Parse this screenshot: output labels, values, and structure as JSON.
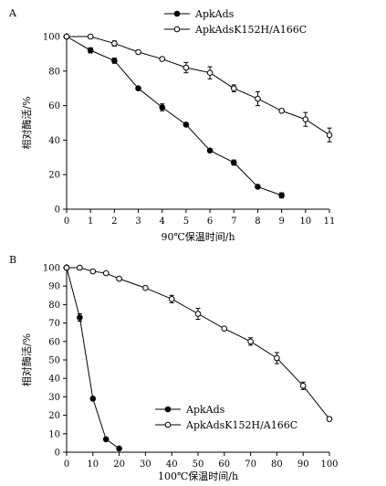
{
  "chart_data": [
    {
      "type": "line",
      "panel_label": "A",
      "xlabel": "90℃保温时间/h",
      "ylabel": "相对酶活/%",
      "xlim": [
        0,
        11
      ],
      "ylim": [
        0,
        100
      ],
      "xticks": [
        0,
        1,
        2,
        3,
        4,
        5,
        6,
        7,
        8,
        9,
        10,
        11
      ],
      "yticks": [
        0,
        20,
        40,
        60,
        80,
        100
      ],
      "grid": false,
      "legend_position": "top-right",
      "series": [
        {
          "name": "ApkAds",
          "marker": "filled-circle",
          "x": [
            0,
            1,
            2,
            3,
            4,
            5,
            6,
            7,
            8,
            9
          ],
          "y": [
            100,
            92,
            86,
            70,
            59,
            49,
            34,
            27,
            13,
            8
          ],
          "err": [
            1,
            1.5,
            1.5,
            0.8,
            2,
            0.8,
            0.8,
            1.5,
            0.5,
            1.5
          ]
        },
        {
          "name": "ApkAdsK152H/A166C",
          "marker": "open-circle",
          "x": [
            0,
            1,
            2,
            3,
            4,
            5,
            6,
            7,
            8,
            9,
            10,
            11
          ],
          "y": [
            100,
            100,
            96,
            91,
            87,
            82,
            79,
            70,
            64,
            57,
            52,
            43
          ],
          "err": [
            1,
            0.5,
            1.5,
            0.8,
            1,
            3,
            3.5,
            2,
            4,
            0.8,
            4,
            4
          ]
        }
      ]
    },
    {
      "type": "line",
      "panel_label": "B",
      "xlabel": "100℃保温时间/h",
      "ylabel": "相对酶活/%",
      "xlim": [
        0,
        100
      ],
      "ylim": [
        0,
        100
      ],
      "xticks": [
        0,
        10,
        20,
        30,
        40,
        50,
        60,
        70,
        80,
        90,
        100
      ],
      "yticks": [
        0,
        10,
        20,
        30,
        40,
        50,
        60,
        70,
        80,
        90,
        100
      ],
      "grid": false,
      "legend_position": "bottom-left",
      "series": [
        {
          "name": "ApkAds",
          "marker": "filled-circle",
          "x": [
            0,
            5,
            10,
            15,
            20
          ],
          "y": [
            100,
            73,
            29,
            7,
            2
          ],
          "err": [
            1,
            2,
            1,
            0.5,
            0.5
          ]
        },
        {
          "name": "ApkAdsK152H/A166C",
          "marker": "open-circle",
          "x": [
            0,
            5,
            10,
            15,
            20,
            30,
            40,
            50,
            60,
            70,
            80,
            90,
            100
          ],
          "y": [
            100,
            100,
            98,
            97,
            94,
            89,
            83,
            75,
            67,
            60,
            51,
            36,
            18
          ],
          "err": [
            0.5,
            0.5,
            0.5,
            0.5,
            0.8,
            0.5,
            2,
            3,
            0.5,
            2,
            3,
            2,
            1
          ]
        }
      ]
    }
  ]
}
